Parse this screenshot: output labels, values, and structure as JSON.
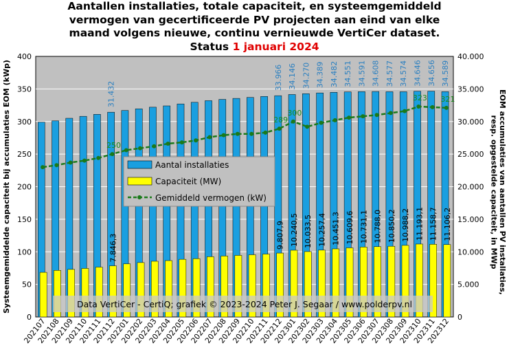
{
  "title": {
    "line1": "Aantallen installaties, totale capaciteit, en systeemgemiddeld",
    "line2": "vermogen van gecertificeerde PV projecten aan eind van elke",
    "line3": "maand volgens nieuwe, continu vernieuwde VertiCer dataset.",
    "status_prefix": "Status ",
    "status_date": "1 januari 2024"
  },
  "credit": "Data VertiCer - CertiQ; grafiek © 2023-2024 Peter J. Segaar / www.polderpv.nl",
  "colors": {
    "plot_bg": "#c0c0c0",
    "installations": "#1a9fe0",
    "capacity": "#ffff00",
    "avg_power": "#1a7a1a",
    "label_blue": "#2a7fc0",
    "label_green": "#1a8a1a",
    "status_date": "#e00000"
  },
  "chart_data": {
    "type": "bar",
    "categories": [
      "202107",
      "202108",
      "202109",
      "202110",
      "202111",
      "202112",
      "202201",
      "202202",
      "202203",
      "202204",
      "202205",
      "202206",
      "202207",
      "202208",
      "202209",
      "202210",
      "202211",
      "202212",
      "202301",
      "202302",
      "202303",
      "202304",
      "202305",
      "202306",
      "202307",
      "202308",
      "202309",
      "202310",
      "202311",
      "202312"
    ],
    "ylabel_left": "Systeemgemiddelde capaciteit bij accumulaties EOM (kWp)",
    "ylabel_right": "EOM accumulaties van aantallen PV installaties, resp. opgestelde capaciteit, in MWp",
    "ylim_left": [
      0,
      400
    ],
    "ylim_right": [
      0,
      40000
    ],
    "left_ticks": [
      "0",
      "50",
      "100",
      "150",
      "200",
      "250",
      "300",
      "350",
      "400"
    ],
    "right_ticks": [
      "0",
      "5.000",
      "10.000",
      "15.000",
      "20.000",
      "25.000",
      "30.000",
      "35.000",
      "40.000"
    ],
    "grid": true,
    "legend_position": "center-left",
    "series": [
      {
        "name": "Aantal installaties",
        "axis": "right",
        "kind": "bar",
        "values": [
          29900,
          30100,
          30500,
          30800,
          31100,
          31432,
          31700,
          31950,
          32200,
          32400,
          32700,
          32950,
          33200,
          33400,
          33550,
          33700,
          33850,
          33966,
          34146,
          34270,
          34389,
          34482,
          34551,
          34591,
          34608,
          34577,
          34574,
          34646,
          34656,
          34589
        ],
        "labels": [
          "",
          "",
          "",
          "",
          "",
          "31.432",
          "",
          "",
          "",
          "",
          "",
          "",
          "",
          "",
          "",
          "",
          "",
          "33.966",
          "34.146",
          "34.270",
          "34.389",
          "34.482",
          "34.551",
          "34.591",
          "34.608",
          "34.577",
          "34.574",
          "34.646",
          "34.656",
          "34.589"
        ]
      },
      {
        "name": "Capaciteit (MW)",
        "axis": "right",
        "kind": "bar",
        "values": [
          6850,
          7150,
          7300,
          7450,
          7650,
          7846.3,
          8150,
          8350,
          8550,
          8650,
          8850,
          8950,
          9250,
          9350,
          9450,
          9550,
          9650,
          9807.9,
          10240.5,
          10033.5,
          10257.4,
          10451.3,
          10609.6,
          10731.1,
          10788.0,
          10850.2,
          10988.2,
          11193.1,
          11158.7,
          11106.2
        ],
        "labels": [
          "",
          "",
          "",
          "",
          "",
          "7.846,3",
          "",
          "",
          "",
          "",
          "",
          "",
          "",
          "",
          "",
          "",
          "",
          "9.807,9",
          "10.240,5",
          "10.033,5",
          "10.257,4",
          "10.451,3",
          "10.609,6",
          "10.731,1",
          "10.788,0",
          "10.850,2",
          "10.988,2",
          "11.193,1",
          "11.158,7",
          "11.106,2"
        ]
      },
      {
        "name": "Gemiddeld vermogen (kW)",
        "axis": "left",
        "kind": "line",
        "values": [
          230,
          233,
          237,
          240,
          244,
          250,
          256,
          259,
          262,
          266,
          268,
          271,
          276,
          279,
          281,
          281,
          283,
          289,
          300,
          292,
          298,
          302,
          306,
          308,
          310,
          313,
          316,
          323,
          322,
          321
        ],
        "labels": [
          "",
          "",
          "",
          "",
          "",
          "250",
          "",
          "",
          "",
          "",
          "",
          "",
          "",
          "",
          "",
          "",
          "",
          "289",
          "300",
          "",
          "",
          "",
          "",
          "",
          "",
          "",
          "",
          "323",
          "",
          "321"
        ]
      }
    ]
  }
}
